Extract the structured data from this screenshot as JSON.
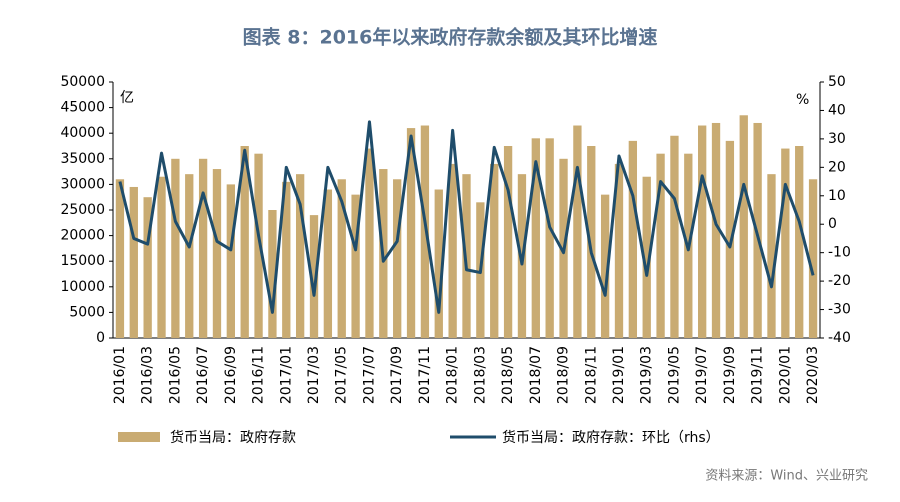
{
  "chart_data": {
    "type": "bar_line",
    "title": "图表 8：2016年以来政府存款余额及其环比增速",
    "ylabel": "亿",
    "y2label": "%",
    "source": "资料来源：Wind、兴业研究",
    "categories": [
      "2016/01",
      null,
      "2016/03",
      null,
      "2016/05",
      null,
      "2016/07",
      null,
      "2016/09",
      null,
      "2016/11",
      null,
      "2017/01",
      null,
      "2017/03",
      null,
      "2017/05",
      null,
      "2017/07",
      null,
      "2017/09",
      null,
      "2017/11",
      null,
      "2018/01",
      null,
      "2018/03",
      null,
      "2018/05",
      null,
      "2018/07",
      null,
      "2018/09",
      null,
      "2018/11",
      null,
      "2019/01",
      null,
      "2019/03",
      null,
      "2019/05",
      null,
      "2019/07",
      null,
      "2019/09",
      null,
      "2019/11",
      null,
      "2020/01",
      null,
      "2020/03"
    ],
    "series": [
      {
        "name": "货币当局：政府存款",
        "color": "#c9ab72",
        "type": "bar",
        "values": [
          31000,
          29500,
          27500,
          31500,
          35000,
          32000,
          35000,
          33000,
          30000,
          37500,
          36000,
          25000,
          30500,
          32000,
          24000,
          29000,
          31000,
          28000,
          37000,
          33000,
          31000,
          41000,
          41500,
          29000,
          34000,
          32000,
          26500,
          34000,
          37500,
          32000,
          39000,
          39000,
          35000,
          41500,
          37500,
          28000,
          34000,
          38500,
          31500,
          36000,
          39500,
          36000,
          41500,
          42000,
          38500,
          43500,
          42000,
          32000,
          37000,
          37500,
          31000
        ]
      },
      {
        "name": "货币当局：政府存款：环比（rhs）",
        "color": "#1f4d6b",
        "type": "line",
        "axis": "y2",
        "values": [
          15,
          -5,
          -7,
          25,
          1,
          -8,
          11,
          -6,
          -9,
          26,
          -4,
          -31,
          20,
          7,
          -25,
          20,
          8,
          -9,
          36,
          -13,
          -6,
          31,
          1,
          -31,
          33,
          -16,
          -17,
          27,
          12,
          -14,
          22,
          -1,
          -10,
          20,
          -10,
          -25,
          24,
          10,
          -18,
          15,
          9,
          -9,
          17,
          0,
          -8,
          14,
          -4,
          -22,
          14,
          1,
          -18
        ]
      }
    ],
    "ylim": [
      0,
      50000
    ],
    "yticks": [
      0,
      5000,
      10000,
      15000,
      20000,
      25000,
      30000,
      35000,
      40000,
      45000,
      50000
    ],
    "y2lim": [
      -40,
      50
    ],
    "y2ticks": [
      -40,
      -30,
      -20,
      -10,
      0,
      10,
      20,
      30,
      40,
      50
    ]
  }
}
